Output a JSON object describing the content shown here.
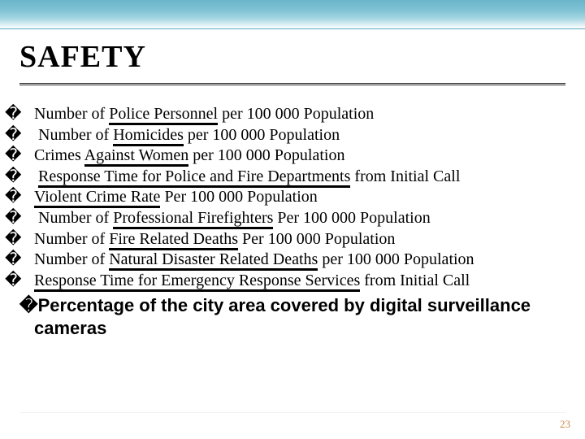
{
  "title": "SAFETY",
  "bullet_glyph": "�",
  "items": [
    {
      "pre": "Number of ",
      "u": "Police Personnel",
      "post": " per 100 000 Population"
    },
    {
      "pre": " Number of ",
      "u": "Homicides",
      "post": " per 100 000 Population"
    },
    {
      "pre": "Crimes ",
      "u": "Against Women",
      "post": " per 100 000 Population"
    },
    {
      "pre": " ",
      "u": "Response Time for Police and Fire Departments",
      "post": " from Initial Call"
    },
    {
      "pre": "",
      "u": "Violent Crime Rate",
      "post": " Per 100 000 Population"
    },
    {
      "pre": " Number of ",
      "u": "Professional Firefighters",
      "post": " Per 100 000 Population"
    },
    {
      "pre": "Number of ",
      "u": "Fire Related Deaths",
      "post": " Per 100 000 Population"
    },
    {
      "pre": "Number of ",
      "u": "Natural Disaster Related Deaths",
      "post": " per 100 000 Population"
    },
    {
      "pre": "",
      "u": "Response Time for Emergency Response Services",
      "post": " from Initial Call"
    }
  ],
  "bold_item": {
    "pre": "",
    "bullet": "�",
    "text": "Percentage of the city area covered by digital surveillance cameras"
  },
  "page_number": "23",
  "colors": {
    "underline": "#000000",
    "text": "#000000",
    "page_num": "#d08a4a"
  }
}
